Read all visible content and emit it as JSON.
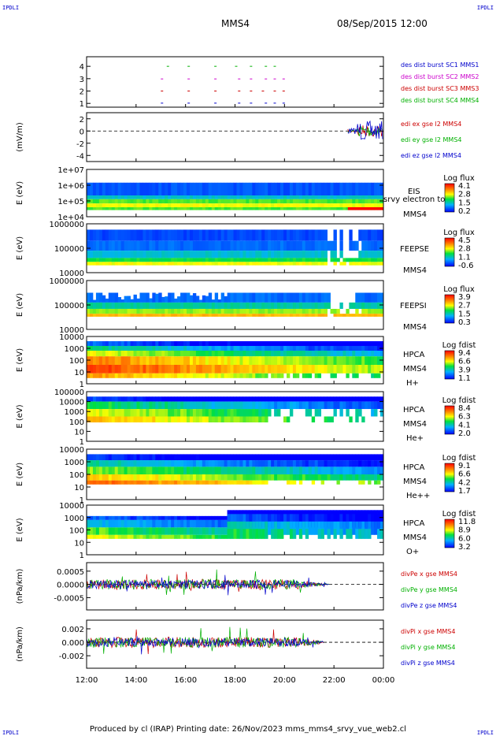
{
  "corner_label": "IPDLI",
  "header": {
    "spacecraft": "MMS4",
    "datetime": "08/Sep/2015 12:00"
  },
  "footer": "Produced by cl (IRAP)   Printing date: 26/Nov/2023   mms_mms4_srvy_vue_web2.cl",
  "x_axis": {
    "ticks": [
      "12:00",
      "14:00",
      "16:00",
      "18:00",
      "20:00",
      "22:00",
      "00:00"
    ]
  },
  "colors": {
    "blue": "#0000cc",
    "magenta": "#cc00cc",
    "red": "#cc0000",
    "green": "#00b000"
  },
  "chart_data": [
    {
      "type": "scatter",
      "yticks": [
        "1",
        "2",
        "3",
        "4"
      ],
      "ylim": [
        0.5,
        4.5
      ],
      "legend": [
        {
          "text": "des dist burst SC1 MMS1",
          "color": "#0000cc"
        },
        {
          "text": "des dist burst SC2 MMS2",
          "color": "#cc00cc"
        },
        {
          "text": "des dist burst SC3 MMS3",
          "color": "#cc0000"
        },
        {
          "text": "des dist burst SC4 MMS4",
          "color": "#00b000"
        }
      ]
    },
    {
      "type": "line",
      "ylabel": "(mV/m)",
      "yticks": [
        "2",
        "0",
        "-2",
        "-4"
      ],
      "ylim": [
        -5,
        3
      ],
      "legend": [
        {
          "text": "edi ex gse l2 MMS4",
          "color": "#cc0000"
        },
        {
          "text": "edi ey gse l2 MMS4",
          "color": "#00b000"
        },
        {
          "text": "edi ez gse l2 MMS4",
          "color": "#0000cc"
        }
      ]
    },
    {
      "type": "heatmap",
      "ylabel": "E (eV)",
      "yticks": [
        "1e+07",
        "1e+06",
        "1e+05",
        "1e+04"
      ],
      "right_labels": [
        "EIS",
        "srvy electron to",
        "MMS4"
      ],
      "colorbar_title": "Log flux",
      "colorbar_ticks": [
        "4.1",
        "2.8",
        "1.5",
        "0.2"
      ]
    },
    {
      "type": "heatmap",
      "ylabel": "E (eV)",
      "yticks": [
        "1000000",
        "100000",
        "10000"
      ],
      "right_labels": [
        "FEEPSE",
        "MMS4"
      ],
      "colorbar_title": "Log flux",
      "colorbar_ticks": [
        "4.5",
        "2.8",
        "1.1",
        "-0.6"
      ]
    },
    {
      "type": "heatmap",
      "ylabel": "E (eV)",
      "yticks": [
        "1000000",
        "100000",
        "10000"
      ],
      "right_labels": [
        "FEEPSI",
        "MMS4"
      ],
      "colorbar_title": "Log flux",
      "colorbar_ticks": [
        "3.9",
        "2.7",
        "1.5",
        "0.3"
      ]
    },
    {
      "type": "heatmap",
      "ylabel": "E (eV)",
      "yticks": [
        "10000",
        "1000",
        "100",
        "10",
        "1"
      ],
      "right_labels": [
        "HPCA",
        "MMS4",
        "H+"
      ],
      "colorbar_title": "Log fdist",
      "colorbar_ticks": [
        "9.4",
        "6.6",
        "3.9",
        "1.1"
      ]
    },
    {
      "type": "heatmap",
      "ylabel": "E (eV)",
      "yticks": [
        "100000",
        "10000",
        "1000",
        "100",
        "10",
        "1"
      ],
      "right_labels": [
        "HPCA",
        "MMS4",
        "He+"
      ],
      "colorbar_title": "Log fdist",
      "colorbar_ticks": [
        "8.4",
        "6.3",
        "4.1",
        "2.0"
      ]
    },
    {
      "type": "heatmap",
      "ylabel": "E (eV)",
      "yticks": [
        "10000",
        "1000",
        "100",
        "10",
        "1"
      ],
      "right_labels": [
        "HPCA",
        "MMS4",
        "He++"
      ],
      "colorbar_title": "Log fdist",
      "colorbar_ticks": [
        "9.1",
        "6.6",
        "4.2",
        "1.7"
      ]
    },
    {
      "type": "heatmap",
      "ylabel": "E (eV)",
      "yticks": [
        "10000",
        "1000",
        "100",
        "10",
        "1"
      ],
      "right_labels": [
        "HPCA",
        "MMS4",
        "O+"
      ],
      "colorbar_title": "Log fdist",
      "colorbar_ticks": [
        "11.8",
        "8.9",
        "6.0",
        "3.2"
      ]
    },
    {
      "type": "line",
      "ylabel": "(nPa/km)",
      "yticks": [
        "0.0005",
        "0.0000",
        "-0.0005"
      ],
      "ylim": [
        -0.0009,
        0.0007
      ],
      "legend": [
        {
          "text": "divPe x gse MMS4",
          "color": "#cc0000"
        },
        {
          "text": "divPe y gse MMS4",
          "color": "#00b000"
        },
        {
          "text": "divPe z gse MMS4",
          "color": "#0000cc"
        }
      ]
    },
    {
      "type": "line",
      "ylabel": "(nPa/km)",
      "yticks": [
        "0.002",
        "0.000",
        "-0.002"
      ],
      "ylim": [
        -0.0035,
        0.003
      ],
      "legend": [
        {
          "text": "divPi x gse MMS4",
          "color": "#cc0000"
        },
        {
          "text": "divPi y gse MMS4",
          "color": "#00b000"
        },
        {
          "text": "divPi z gse MMS4",
          "color": "#0000cc"
        }
      ]
    }
  ]
}
